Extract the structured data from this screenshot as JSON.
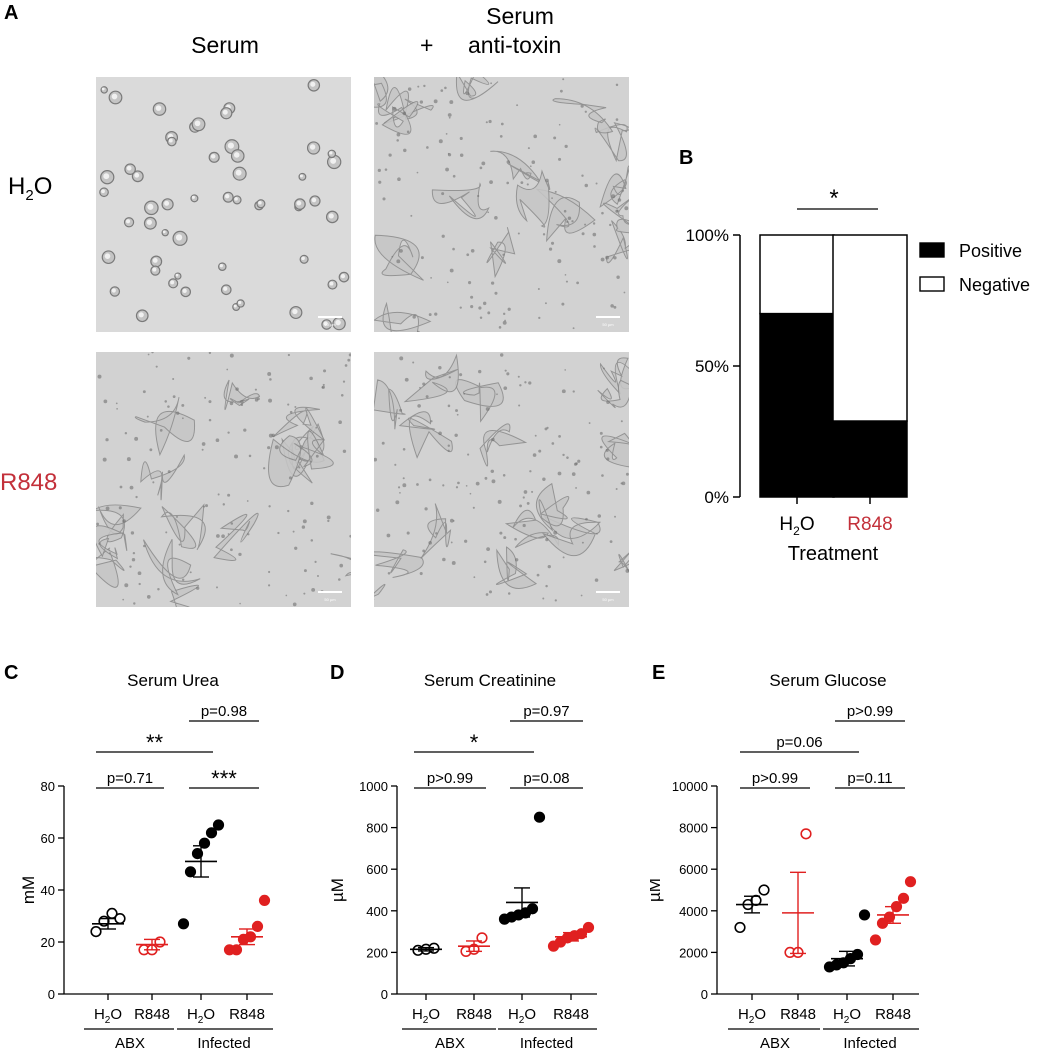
{
  "panel_letters": {
    "a": "A",
    "b": "B",
    "c": "C",
    "d": "D",
    "e": "E"
  },
  "micrographs": {
    "col_headers": [
      "Serum",
      "Serum",
      "+",
      "anti-toxin"
    ],
    "row_headers": {
      "h2o_main": "H",
      "h2o_sub": "2",
      "h2o_tail": "O",
      "r848": "R848"
    },
    "scale_bar_label": "50 µm",
    "colors": {
      "r848": "#c3303a"
    }
  },
  "chart_data": [
    {
      "panel": "B",
      "type": "bar",
      "stacked": true,
      "categories": [
        "H2O",
        "R848"
      ],
      "category_display": [
        [
          "H",
          "2",
          "O"
        ],
        [
          "R848"
        ]
      ],
      "series": [
        {
          "name": "Positive",
          "values": [
            70,
            29
          ],
          "color": "#000000"
        },
        {
          "name": "Negative",
          "values": [
            30,
            71
          ],
          "color": "#ffffff"
        }
      ],
      "xlabel": "Treatment",
      "ylim": [
        0,
        100
      ],
      "yticks": [
        "0%",
        "50%",
        "100%"
      ],
      "significance": "*",
      "legend_position": "right"
    },
    {
      "panel": "C",
      "type": "scatter",
      "title": "Serum Urea",
      "ylabel": "mM",
      "ylim": [
        0,
        80
      ],
      "yticks": [
        0,
        20,
        40,
        60,
        80
      ],
      "groups": [
        {
          "label": "H2O",
          "group": "ABX",
          "color": "#000000",
          "filled": false,
          "mean": 27,
          "sem": 2,
          "values": [
            24,
            28,
            31,
            29
          ]
        },
        {
          "label": "R848",
          "group": "ABX",
          "color": "#e02020",
          "filled": false,
          "mean": 19,
          "sem": 2,
          "values": [
            17,
            17,
            20
          ]
        },
        {
          "label": "H2O",
          "group": "Infected",
          "color": "#000000",
          "filled": true,
          "mean": 51,
          "sem": 6,
          "values": [
            27,
            47,
            54,
            58,
            62,
            65
          ]
        },
        {
          "label": "R848",
          "group": "Infected",
          "color": "#e02020",
          "filled": true,
          "mean": 22,
          "sem": 3,
          "values": [
            17,
            17,
            21,
            22,
            26,
            36
          ]
        }
      ],
      "comparisons": [
        {
          "from": 2,
          "to": 3,
          "text": "p=0.98",
          "level": 3
        },
        {
          "from": 0,
          "to": 2,
          "text": "**",
          "level": 2
        },
        {
          "from": 0,
          "to": 1,
          "text": "p=0.71",
          "level": 1
        },
        {
          "from": 2,
          "to": 3,
          "text": "***",
          "level": 1
        }
      ],
      "group_labels": [
        "ABX",
        "Infected"
      ]
    },
    {
      "panel": "D",
      "type": "scatter",
      "title": "Serum Creatinine",
      "ylabel": "µM",
      "ylim": [
        0,
        1000
      ],
      "yticks": [
        0,
        200,
        400,
        600,
        800,
        1000
      ],
      "groups": [
        {
          "label": "H2O",
          "group": "ABX",
          "color": "#000000",
          "filled": false,
          "mean": 215,
          "sem": 8,
          "values": [
            210,
            215,
            220
          ]
        },
        {
          "label": "R848",
          "group": "ABX",
          "color": "#e02020",
          "filled": false,
          "mean": 230,
          "sem": 25,
          "values": [
            205,
            215,
            270
          ]
        },
        {
          "label": "H2O",
          "group": "Infected",
          "color": "#000000",
          "filled": true,
          "mean": 440,
          "sem": 70,
          "values": [
            360,
            370,
            380,
            390,
            410,
            850
          ]
        },
        {
          "label": "R848",
          "group": "Infected",
          "color": "#e02020",
          "filled": true,
          "mean": 275,
          "sem": 20,
          "values": [
            230,
            250,
            270,
            280,
            290,
            320
          ]
        }
      ],
      "comparisons": [
        {
          "from": 2,
          "to": 3,
          "text": "p=0.97",
          "level": 3
        },
        {
          "from": 0,
          "to": 2,
          "text": "*",
          "level": 2
        },
        {
          "from": 0,
          "to": 1,
          "text": "p>0.99",
          "level": 1
        },
        {
          "from": 2,
          "to": 3,
          "text": "p=0.08",
          "level": 1
        }
      ],
      "group_labels": [
        "ABX",
        "Infected"
      ]
    },
    {
      "panel": "E",
      "type": "scatter",
      "title": "Serum Glucose",
      "ylabel": "µM",
      "ylim": [
        0,
        10000
      ],
      "yticks": [
        0,
        2000,
        4000,
        6000,
        8000,
        10000
      ],
      "groups": [
        {
          "label": "H2O",
          "group": "ABX",
          "color": "#000000",
          "filled": false,
          "mean": 4300,
          "sem": 400,
          "values": [
            3200,
            4300,
            4500,
            5000
          ]
        },
        {
          "label": "R848",
          "group": "ABX",
          "color": "#e02020",
          "filled": false,
          "mean": 3900,
          "sem": 1950,
          "values": [
            2000,
            2000,
            7700
          ]
        },
        {
          "label": "H2O",
          "group": "Infected",
          "color": "#000000",
          "filled": true,
          "mean": 1700,
          "sem": 350,
          "values": [
            1300,
            1400,
            1500,
            1700,
            1900,
            3800
          ]
        },
        {
          "label": "R848",
          "group": "Infected",
          "color": "#e02020",
          "filled": true,
          "mean": 3800,
          "sem": 400,
          "values": [
            2600,
            3400,
            3700,
            4200,
            4600,
            5400
          ]
        }
      ],
      "comparisons": [
        {
          "from": 2,
          "to": 3,
          "text": "p>0.99",
          "level": 3
        },
        {
          "from": 0,
          "to": 2,
          "text": "p=0.06",
          "level": 2
        },
        {
          "from": 0,
          "to": 1,
          "text": "p>0.99",
          "level": 1
        },
        {
          "from": 2,
          "to": 3,
          "text": "p=0.11",
          "level": 1
        }
      ],
      "group_labels": [
        "ABX",
        "Infected"
      ]
    }
  ]
}
